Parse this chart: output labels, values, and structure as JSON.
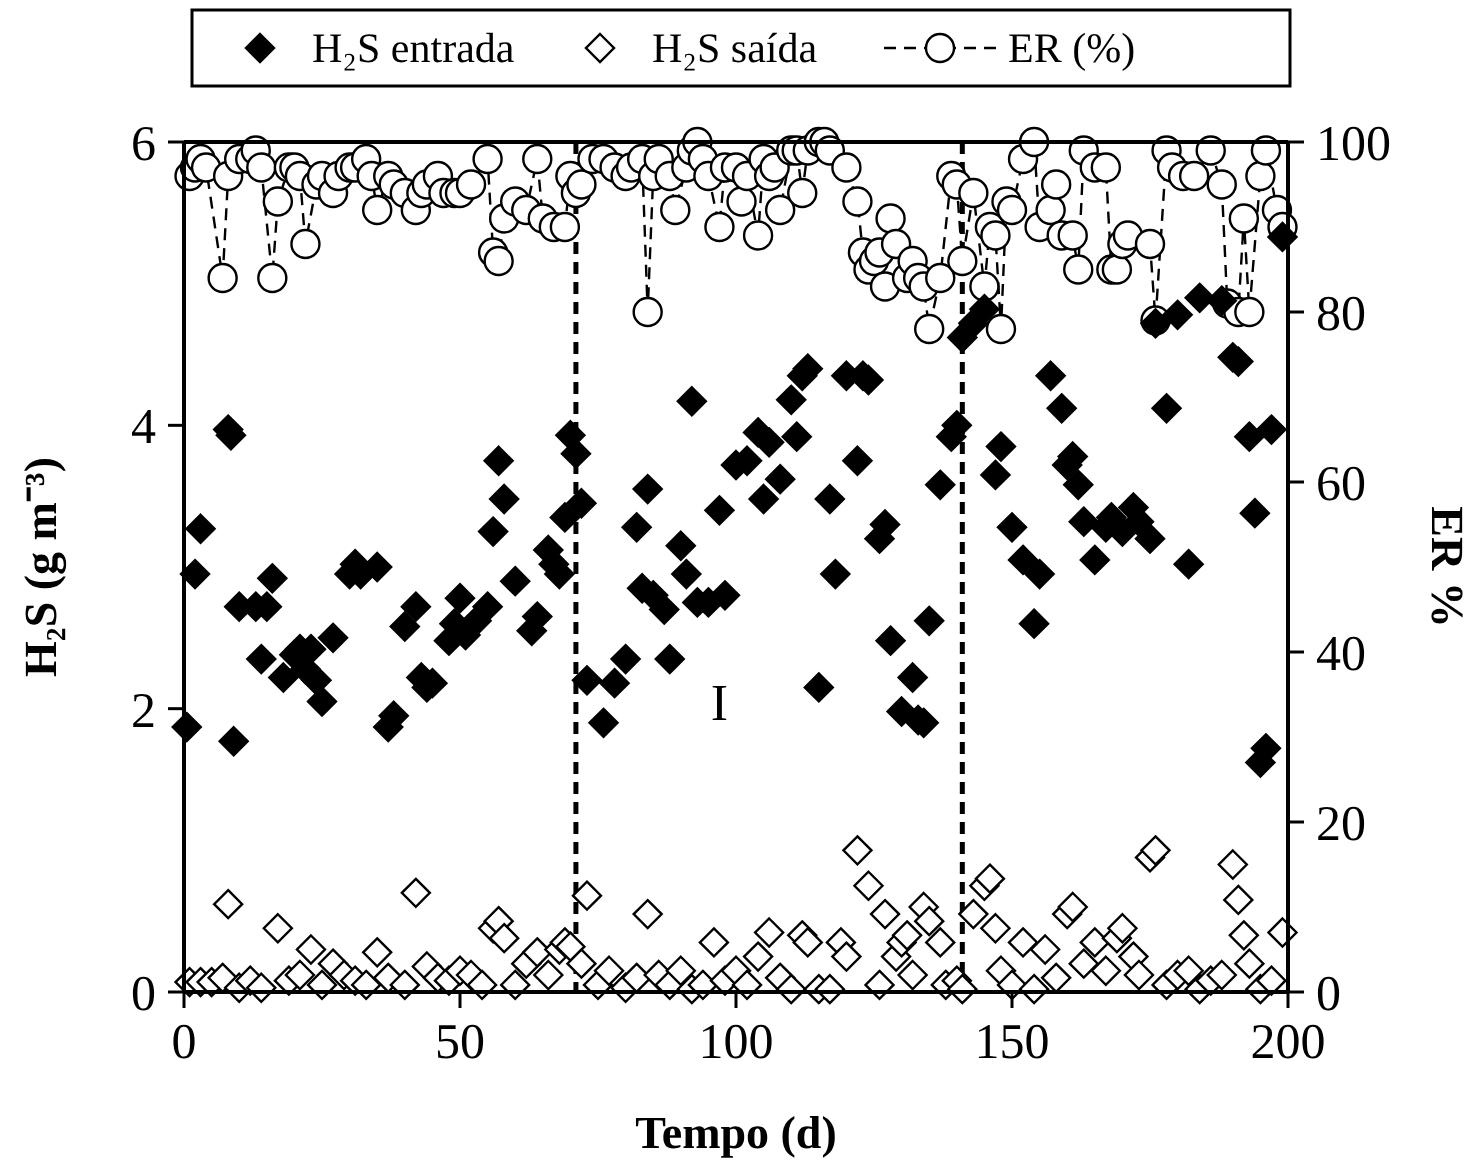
{
  "chart_data": {
    "type": "scatter",
    "xlabel": "Tempo (d)",
    "ylabel": "H₂S (g m⁻³)",
    "y2label": "ER %",
    "xlim": [
      0,
      200
    ],
    "xticks": [
      0,
      50,
      100,
      150,
      200
    ],
    "ylim": [
      0,
      6
    ],
    "yticks": [
      0,
      2,
      4,
      6
    ],
    "y2lim": [
      0,
      100
    ],
    "y2ticks": [
      0,
      20,
      40,
      60,
      80,
      100
    ],
    "legend": "top",
    "grid": false,
    "ref_lines": [
      {
        "axis": "x",
        "value": 71,
        "label": null,
        "color": "#000000",
        "line_style": "dashed"
      },
      {
        "axis": "x",
        "value": 141,
        "label": null,
        "color": "#000000",
        "line_style": "dashed"
      }
    ],
    "annotations": [
      "I"
    ],
    "series": [
      {
        "name": "H₂S entrada",
        "marker": "diamond",
        "color": "#000000",
        "x": [
          0.5,
          2,
          3,
          8,
          8.5,
          9,
          10,
          13,
          14,
          15,
          16,
          18,
          20,
          21,
          22,
          23,
          24,
          25,
          27,
          30,
          31,
          32,
          35,
          37,
          38,
          40,
          42,
          43,
          44,
          45,
          48,
          49,
          50,
          51,
          53,
          55,
          56,
          57,
          58,
          60,
          63,
          64,
          66,
          67,
          68,
          69,
          70,
          71,
          72,
          73,
          76,
          78,
          80,
          82,
          83,
          84,
          85,
          87,
          88,
          90,
          91,
          92,
          93,
          95,
          97,
          98,
          100,
          102,
          104,
          105,
          106,
          108,
          110,
          111,
          112,
          113,
          115,
          117,
          118,
          120,
          122,
          123,
          124,
          126,
          127,
          128,
          130,
          132,
          133,
          134,
          135,
          137,
          139,
          140,
          141,
          143,
          145,
          147,
          148,
          150,
          152,
          154,
          155,
          157,
          159,
          160,
          161,
          162,
          163,
          165,
          167,
          168,
          170,
          172,
          173,
          175,
          176,
          178,
          180,
          182,
          184,
          188,
          190,
          191,
          193,
          194,
          195,
          196,
          197,
          199
        ],
        "values": [
          1.87,
          2.95,
          3.27,
          3.97,
          3.93,
          1.77,
          2.72,
          2.72,
          2.35,
          2.72,
          2.92,
          2.22,
          2.38,
          2.42,
          2.28,
          2.42,
          2.2,
          2.05,
          2.5,
          2.95,
          3.02,
          2.95,
          3,
          1.87,
          1.95,
          2.58,
          2.72,
          2.22,
          2.15,
          2.18,
          2.48,
          2.6,
          2.78,
          2.52,
          2.62,
          2.72,
          3.25,
          3.75,
          3.48,
          2.9,
          2.55,
          2.65,
          3.12,
          3.02,
          2.95,
          3.35,
          3.93,
          3.8,
          3.45,
          2.2,
          1.9,
          2.18,
          2.35,
          3.28,
          2.85,
          3.55,
          2.8,
          2.7,
          2.35,
          3.15,
          2.95,
          4.17,
          2.75,
          2.75,
          3.4,
          2.8,
          3.72,
          3.75,
          3.95,
          3.48,
          3.88,
          3.62,
          4.18,
          3.92,
          4.35,
          4.4,
          2.15,
          3.48,
          2.95,
          4.35,
          3.75,
          4.35,
          4.32,
          3.2,
          3.3,
          2.48,
          1.98,
          2.22,
          1.92,
          1.9,
          2.62,
          3.58,
          3.92,
          4,
          4.62,
          4.72,
          4.82,
          3.65,
          3.85,
          3.28,
          3.05,
          2.6,
          2.95,
          4.35,
          4.12,
          3.72,
          3.78,
          3.58,
          3.32,
          3.05,
          3.28,
          3.35,
          3.25,
          3.42,
          3.32,
          3.2,
          4.72,
          4.12,
          4.78,
          3.02,
          4.9,
          4.88,
          4.48,
          4.45,
          3.92,
          3.38,
          1.62,
          1.72,
          3.97,
          5.33
        ]
      },
      {
        "name": "H₂S saída",
        "marker": "diamond",
        "color": "#ffffff",
        "x": [
          1,
          3,
          5,
          7,
          8,
          10,
          12,
          14,
          17,
          19,
          21,
          23,
          25,
          27,
          29,
          31,
          33,
          35,
          37,
          40,
          42,
          44,
          46,
          48,
          50,
          52,
          54,
          56,
          57,
          58,
          60,
          62,
          64,
          66,
          68,
          69,
          70,
          72,
          73,
          75,
          77,
          80,
          82,
          84,
          86,
          88,
          90,
          92,
          94,
          96,
          98,
          100,
          102,
          104,
          106,
          108,
          110,
          112,
          113,
          115,
          117,
          119,
          120,
          122,
          124,
          126,
          127,
          129,
          130,
          131,
          132,
          134,
          135,
          137,
          138,
          140,
          141,
          143,
          145,
          146,
          147,
          148,
          150,
          152,
          154,
          156,
          158,
          160,
          161,
          163,
          165,
          167,
          169,
          170,
          172,
          173,
          175,
          176,
          178,
          180,
          182,
          184,
          186,
          188,
          190,
          191,
          192,
          193,
          195,
          197,
          199
        ],
        "values": [
          0.07,
          0.07,
          0.07,
          0.1,
          0.62,
          0.03,
          0.08,
          0.03,
          0.45,
          0.08,
          0.12,
          0.3,
          0.05,
          0.2,
          0.12,
          0.08,
          0.05,
          0.28,
          0.1,
          0.05,
          0.7,
          0.18,
          0.1,
          0.08,
          0.15,
          0.12,
          0.05,
          0.45,
          0.5,
          0.38,
          0.05,
          0.2,
          0.28,
          0.12,
          0.3,
          0.35,
          0.32,
          0.2,
          0.68,
          0.05,
          0.15,
          0.03,
          0.1,
          0.55,
          0.12,
          0.05,
          0.15,
          0.02,
          0.05,
          0.35,
          0.08,
          0.15,
          0.05,
          0.25,
          0.42,
          0.1,
          0.02,
          0.4,
          0.35,
          0.02,
          0.02,
          0.35,
          0.25,
          1,
          0.75,
          0.05,
          0.55,
          0.25,
          0.35,
          0.4,
          0.12,
          0.6,
          0.5,
          0.35,
          0.05,
          0.08,
          0.02,
          0.55,
          0.75,
          0.8,
          0.45,
          0.15,
          0.05,
          0.35,
          0.02,
          0.3,
          0.1,
          0.55,
          0.6,
          0.2,
          0.35,
          0.15,
          0.38,
          0.45,
          0.25,
          0.12,
          0.95,
          1,
          0.05,
          0.12,
          0.15,
          0.02,
          0.08,
          0.12,
          0.9,
          0.65,
          0.4,
          0.2,
          0.02,
          0.08,
          0.42
        ]
      },
      {
        "name": "ER (%)",
        "type": "line",
        "axis": "y2",
        "marker": "circle",
        "line_style": "dashed",
        "color": "#ffffff",
        "x": [
          1,
          2,
          3,
          4,
          7,
          8,
          10,
          12,
          13,
          14,
          16,
          17,
          19,
          20,
          21,
          22,
          24,
          25,
          27,
          28,
          30,
          31,
          33,
          34,
          35,
          37,
          38,
          40,
          42,
          43,
          44,
          46,
          47,
          49,
          50,
          52,
          55,
          56,
          57,
          58,
          60,
          62,
          64,
          65,
          67,
          69,
          70,
          71,
          72,
          74,
          76,
          78,
          80,
          81,
          83,
          84,
          85,
          86,
          88,
          89,
          91,
          92,
          93,
          94,
          95,
          97,
          98,
          100,
          101,
          102,
          104,
          105,
          106,
          107,
          108,
          110,
          111,
          112,
          113,
          115,
          116,
          117,
          120,
          122,
          123,
          124,
          125,
          126,
          127,
          128,
          129,
          131,
          132,
          133,
          134,
          135,
          137,
          139,
          140,
          141,
          143,
          145,
          146,
          147,
          148,
          149,
          150,
          152,
          154,
          155,
          157,
          158,
          159,
          161,
          162,
          163,
          165,
          167,
          168,
          169,
          170,
          171,
          175,
          176,
          178,
          179,
          181,
          183,
          186,
          188,
          189,
          191,
          192,
          193,
          195,
          196,
          198,
          199
        ],
        "values": [
          96,
          97,
          98,
          97,
          84,
          96,
          98,
          98,
          99,
          97,
          84,
          93,
          97,
          97,
          96,
          88,
          95,
          96,
          94,
          96,
          97,
          97,
          98,
          96,
          92,
          96,
          95,
          94,
          92,
          94,
          95,
          96,
          94,
          94,
          94,
          95,
          98,
          87,
          86,
          91,
          93,
          92,
          98,
          91,
          90,
          90,
          96,
          94,
          95,
          98,
          98,
          97,
          96,
          97,
          98,
          80,
          96,
          98,
          96,
          92,
          97,
          99,
          100,
          98,
          96,
          90,
          97,
          97,
          93,
          96,
          89,
          98,
          96,
          97,
          92,
          99,
          99,
          94,
          99,
          100,
          100,
          99,
          97,
          93,
          87,
          85,
          86,
          87,
          83,
          91,
          88,
          84,
          86,
          84,
          83,
          78,
          84,
          96,
          95,
          86,
          94,
          83,
          90,
          89,
          78,
          93,
          92,
          98,
          100,
          90,
          92,
          95,
          89,
          89,
          85,
          99,
          97,
          97,
          85,
          85,
          88,
          89,
          88,
          79,
          99,
          97,
          96,
          96,
          99,
          95,
          81,
          80,
          91,
          80,
          96,
          99,
          92,
          90
        ]
      }
    ]
  }
}
